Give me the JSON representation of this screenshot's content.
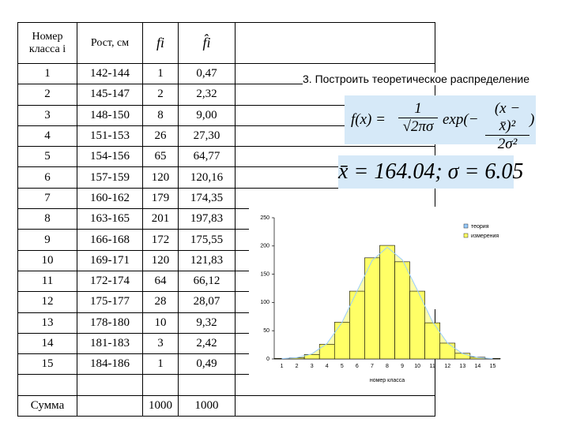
{
  "table": {
    "header": [
      "Номер класса i",
      "Рост, см",
      "fi",
      "f̂i"
    ],
    "rows": [
      [
        "1",
        "142-144",
        "1",
        "0,47"
      ],
      [
        "2",
        "145-147",
        "2",
        "2,32"
      ],
      [
        "3",
        "148-150",
        "8",
        "9,00"
      ],
      [
        "4",
        "151-153",
        "26",
        "27,30"
      ],
      [
        "5",
        "154-156",
        "65",
        "64,77"
      ],
      [
        "6",
        "157-159",
        "120",
        "120,16"
      ],
      [
        "7",
        "160-162",
        "179",
        "174,35"
      ],
      [
        "8",
        "163-165",
        "201",
        "197,83"
      ],
      [
        "9",
        "166-168",
        "172",
        "175,55"
      ],
      [
        "10",
        "169-171",
        "120",
        "121,83"
      ],
      [
        "11",
        "172-174",
        "64",
        "66,12"
      ],
      [
        "12",
        "175-177",
        "28",
        "28,07"
      ],
      [
        "13",
        "178-180",
        "10",
        "9,32"
      ],
      [
        "14",
        "181-183",
        "3",
        "2,42"
      ],
      [
        "15",
        "184-186",
        "1",
        "0,49"
      ]
    ],
    "total": [
      "Сумма",
      "1000",
      "1000"
    ]
  },
  "heading": "3. Построить теоретическое распределение",
  "formula": {
    "lhs": "f(x) =",
    "num1": "1",
    "den1": "√2πσ",
    "exp": "exp(−",
    "num2": "(x − x̄)²",
    "den2": "2σ²",
    "close": ")"
  },
  "params": "x̄ = 164.04; σ = 6.05",
  "chart_data": {
    "type": "bar",
    "categories": [
      "1",
      "2",
      "3",
      "4",
      "5",
      "6",
      "7",
      "8",
      "9",
      "10",
      "11",
      "12",
      "13",
      "14",
      "15"
    ],
    "series": [
      {
        "name": "теория",
        "color": "#99ccff",
        "values": [
          0.47,
          2.32,
          9.0,
          27.3,
          64.77,
          120.16,
          174.35,
          197.83,
          175.55,
          121.83,
          66.12,
          28.07,
          9.32,
          2.42,
          0.49
        ]
      },
      {
        "name": "измерения",
        "color": "#ffff66",
        "values": [
          1,
          2,
          8,
          26,
          65,
          120,
          179,
          201,
          172,
          120,
          64,
          28,
          10,
          3,
          1
        ]
      }
    ],
    "xlabel": "номер класса",
    "ylim": [
      0,
      250
    ],
    "yticks": [
      0,
      50,
      100,
      150,
      200,
      250
    ]
  }
}
